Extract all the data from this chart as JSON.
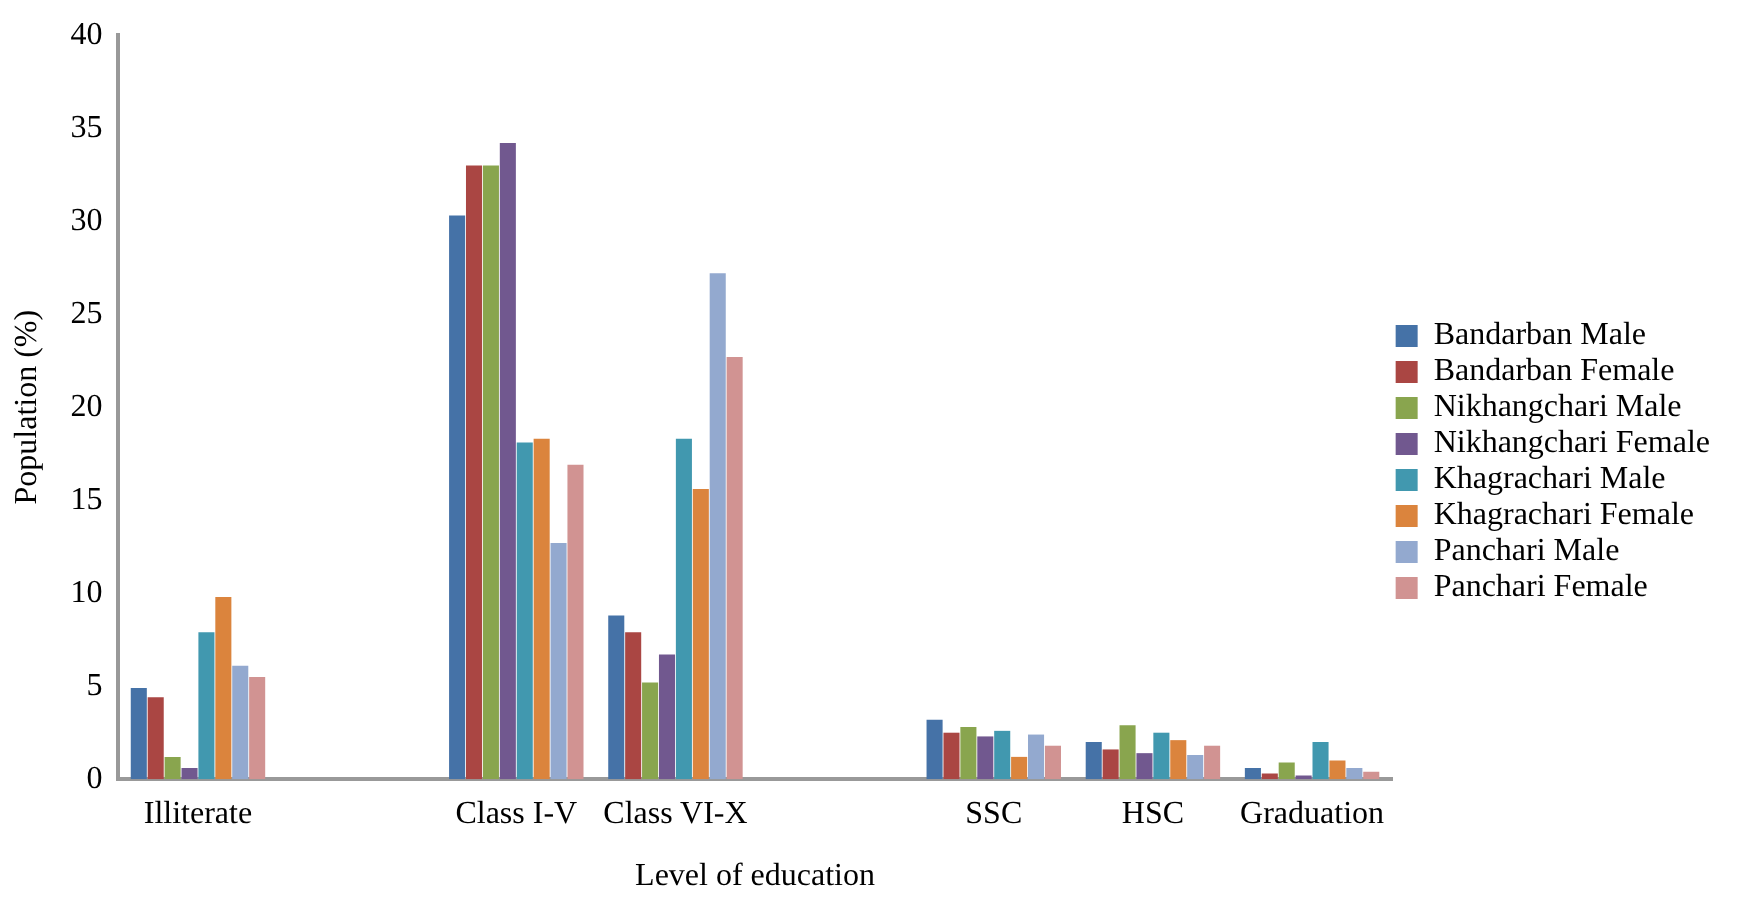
{
  "chart_data": {
    "type": "bar",
    "xlabel": "Level of education",
    "ylabel": "Population (%)",
    "categories": [
      "Illiterate",
      null,
      "Class I-V",
      "Class VI-X",
      null,
      "SSC",
      "HSC",
      "Graduation"
    ],
    "series": [
      {
        "name": "Bandarban Male",
        "color": "#4572a7",
        "values": [
          4.9,
          null,
          30.3,
          8.8,
          null,
          3.2,
          2.0,
          0.6
        ]
      },
      {
        "name": "Bandarban Female",
        "color": "#aa4643",
        "values": [
          4.4,
          null,
          33.0,
          7.9,
          null,
          2.5,
          1.6,
          0.3
        ]
      },
      {
        "name": "Nikhangchari Male",
        "color": "#89a54e",
        "values": [
          1.2,
          null,
          33.0,
          5.2,
          null,
          2.8,
          2.9,
          0.9
        ]
      },
      {
        "name": "Nikhangchari Female",
        "color": "#71588f",
        "values": [
          0.6,
          null,
          34.2,
          6.7,
          null,
          2.3,
          1.4,
          0.2
        ]
      },
      {
        "name": "Khagrachari Male",
        "color": "#4198af",
        "values": [
          7.9,
          null,
          18.1,
          18.3,
          null,
          2.6,
          2.5,
          2.0
        ]
      },
      {
        "name": "Khagrachari Female",
        "color": "#db843d",
        "values": [
          9.8,
          null,
          18.3,
          15.6,
          null,
          1.2,
          2.1,
          1.0
        ]
      },
      {
        "name": "Panchari Male",
        "color": "#93a9cf",
        "values": [
          6.1,
          null,
          12.7,
          27.2,
          null,
          2.4,
          1.3,
          0.6
        ]
      },
      {
        "name": "Panchari Female",
        "color": "#d19392",
        "values": [
          5.5,
          null,
          16.9,
          22.7,
          null,
          1.8,
          1.8,
          0.4
        ]
      }
    ],
    "ylim": [
      0,
      40
    ],
    "yticks": [
      0,
      5,
      10,
      15,
      20,
      25,
      30,
      35,
      40
    ],
    "grid": false,
    "legend": "right"
  }
}
